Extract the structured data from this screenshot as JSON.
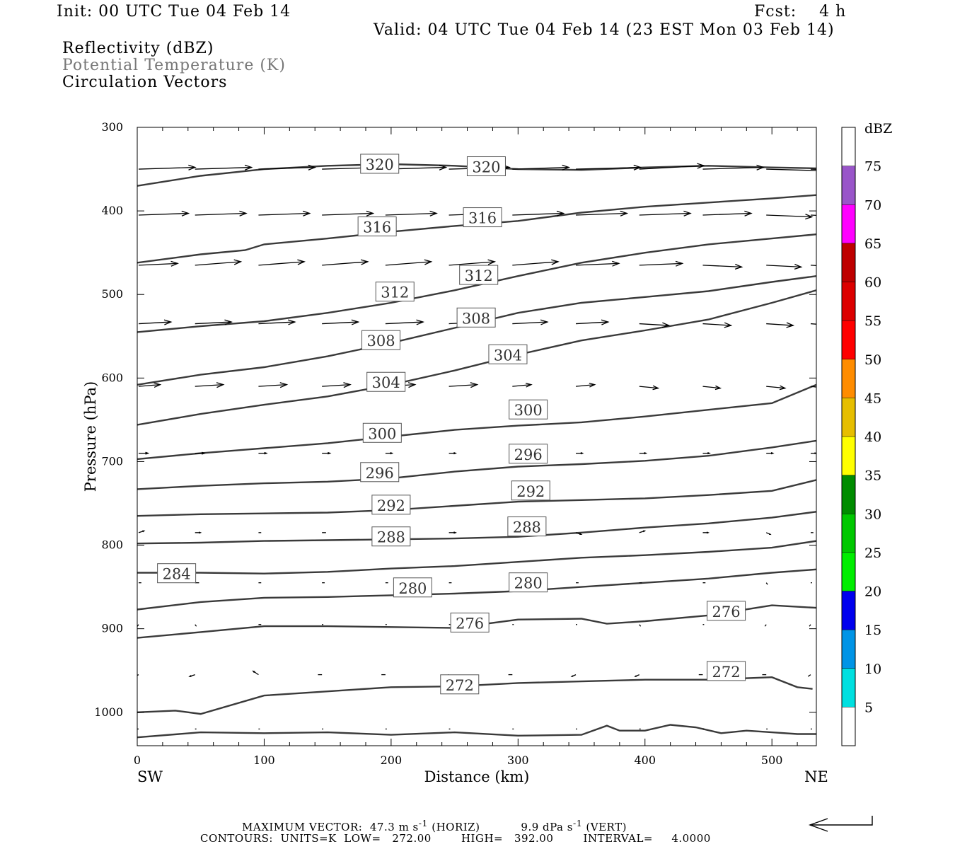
{
  "header": {
    "init": "Init: 00 UTC Tue 04 Feb 14",
    "fcst": "Fcst:    4 h",
    "valid": "Valid: 04 UTC Tue 04 Feb 14 (23 EST Mon 03 Feb 14)"
  },
  "legend": {
    "line1": "Reflectivity (dBZ)",
    "line2": "Potential Temperature (K)",
    "line3": "Circulation Vectors",
    "line2_color": "#777777"
  },
  "footer": {
    "max_vector_label": "MAXIMUM VECTOR:",
    "max_horiz_value": "47.3",
    "max_vert_value": "9.9",
    "contours_line": "CONTOURS:  UNITS=K  LOW=   272.00        HIGH=   392.00        INTERVAL=     4.0000"
  },
  "chart_data": {
    "type": "line",
    "title": "",
    "xlabel": "Distance (km)",
    "ylabel": "Pressure (hPa)",
    "xlim": [
      0,
      535
    ],
    "ylim": [
      1040,
      300
    ],
    "x_ticks": [
      0,
      100,
      200,
      300,
      400,
      500
    ],
    "y_ticks": [
      300,
      400,
      500,
      600,
      700,
      800,
      900,
      1000
    ],
    "x_left_label": "SW",
    "x_right_label": "NE",
    "line_color": "#3a3a3a",
    "isentropes": [
      {
        "theta": 320,
        "points": [
          [
            0,
            370
          ],
          [
            50,
            358
          ],
          [
            100,
            350
          ],
          [
            150,
            346
          ],
          [
            200,
            344
          ],
          [
            250,
            346
          ],
          [
            300,
            350
          ],
          [
            350,
            351
          ],
          [
            400,
            348
          ],
          [
            450,
            346
          ],
          [
            500,
            348
          ],
          [
            535,
            349
          ]
        ]
      },
      {
        "theta": 316,
        "points": [
          [
            0,
            462
          ],
          [
            50,
            452
          ],
          [
            85,
            447
          ],
          [
            100,
            440
          ],
          [
            150,
            433
          ],
          [
            200,
            425
          ],
          [
            250,
            418
          ],
          [
            300,
            412
          ],
          [
            350,
            402
          ],
          [
            400,
            395
          ],
          [
            450,
            390
          ],
          [
            500,
            385
          ],
          [
            535,
            381
          ]
        ]
      },
      {
        "theta": 312,
        "points": [
          [
            0,
            545
          ],
          [
            50,
            538
          ],
          [
            100,
            532
          ],
          [
            150,
            522
          ],
          [
            200,
            510
          ],
          [
            250,
            495
          ],
          [
            300,
            478
          ],
          [
            350,
            462
          ],
          [
            400,
            450
          ],
          [
            450,
            440
          ],
          [
            500,
            433
          ],
          [
            535,
            428
          ]
        ]
      },
      {
        "theta": 308,
        "points": [
          [
            0,
            608
          ],
          [
            50,
            596
          ],
          [
            100,
            587
          ],
          [
            150,
            574
          ],
          [
            200,
            558
          ],
          [
            250,
            540
          ],
          [
            300,
            522
          ],
          [
            350,
            510
          ],
          [
            400,
            503
          ],
          [
            450,
            496
          ],
          [
            500,
            485
          ],
          [
            535,
            478
          ]
        ]
      },
      {
        "theta": 304,
        "points": [
          [
            0,
            656
          ],
          [
            50,
            643
          ],
          [
            100,
            632
          ],
          [
            150,
            622
          ],
          [
            200,
            608
          ],
          [
            250,
            591
          ],
          [
            300,
            572
          ],
          [
            350,
            555
          ],
          [
            400,
            543
          ],
          [
            450,
            530
          ],
          [
            500,
            510
          ],
          [
            535,
            495
          ]
        ]
      },
      {
        "theta": 300,
        "points": [
          [
            0,
            697
          ],
          [
            50,
            690
          ],
          [
            100,
            684
          ],
          [
            150,
            678
          ],
          [
            200,
            670
          ],
          [
            250,
            662
          ],
          [
            300,
            657
          ],
          [
            350,
            653
          ],
          [
            400,
            646
          ],
          [
            450,
            638
          ],
          [
            500,
            630
          ],
          [
            535,
            608
          ]
        ]
      },
      {
        "theta": 296,
        "points": [
          [
            0,
            733
          ],
          [
            50,
            729
          ],
          [
            100,
            726
          ],
          [
            150,
            724
          ],
          [
            200,
            720
          ],
          [
            250,
            712
          ],
          [
            300,
            706
          ],
          [
            350,
            703
          ],
          [
            400,
            699
          ],
          [
            450,
            693
          ],
          [
            500,
            683
          ],
          [
            535,
            675
          ]
        ]
      },
      {
        "theta": 292,
        "points": [
          [
            0,
            765
          ],
          [
            50,
            763
          ],
          [
            100,
            762
          ],
          [
            150,
            761
          ],
          [
            200,
            758
          ],
          [
            250,
            753
          ],
          [
            300,
            748
          ],
          [
            350,
            746
          ],
          [
            400,
            744
          ],
          [
            450,
            740
          ],
          [
            500,
            735
          ],
          [
            535,
            722
          ]
        ]
      },
      {
        "theta": 288,
        "points": [
          [
            0,
            798
          ],
          [
            50,
            797
          ],
          [
            100,
            795
          ],
          [
            150,
            794
          ],
          [
            200,
            793
          ],
          [
            250,
            792
          ],
          [
            300,
            790
          ],
          [
            350,
            785
          ],
          [
            400,
            779
          ],
          [
            450,
            774
          ],
          [
            500,
            767
          ],
          [
            535,
            760
          ]
        ]
      },
      {
        "theta": 284,
        "points": [
          [
            0,
            833
          ],
          [
            50,
            833
          ],
          [
            100,
            834
          ],
          [
            150,
            832
          ],
          [
            200,
            828
          ],
          [
            250,
            825
          ],
          [
            300,
            820
          ],
          [
            350,
            815
          ],
          [
            400,
            812
          ],
          [
            450,
            808
          ],
          [
            500,
            803
          ],
          [
            535,
            795
          ]
        ]
      },
      {
        "theta": 280,
        "points": [
          [
            0,
            877
          ],
          [
            50,
            868
          ],
          [
            100,
            863
          ],
          [
            150,
            862
          ],
          [
            200,
            860
          ],
          [
            250,
            858
          ],
          [
            300,
            855
          ],
          [
            350,
            850
          ],
          [
            400,
            845
          ],
          [
            450,
            840
          ],
          [
            500,
            833
          ],
          [
            535,
            829
          ]
        ]
      },
      {
        "theta": 276,
        "points": [
          [
            0,
            911
          ],
          [
            50,
            904
          ],
          [
            100,
            897
          ],
          [
            150,
            897
          ],
          [
            200,
            898
          ],
          [
            250,
            899
          ],
          [
            300,
            889
          ],
          [
            350,
            888
          ],
          [
            370,
            894
          ],
          [
            400,
            891
          ],
          [
            450,
            884
          ],
          [
            500,
            872
          ],
          [
            535,
            875
          ]
        ]
      },
      {
        "theta": 272,
        "points": [
          [
            0,
            1000
          ],
          [
            30,
            998
          ],
          [
            50,
            1002
          ],
          [
            100,
            980
          ],
          [
            150,
            975
          ],
          [
            200,
            970
          ],
          [
            250,
            969
          ],
          [
            300,
            965
          ],
          [
            350,
            963
          ],
          [
            400,
            961
          ],
          [
            450,
            961
          ],
          [
            500,
            958
          ],
          [
            520,
            970
          ],
          [
            532,
            972
          ]
        ]
      },
      {
        "theta": 268,
        "points": [
          [
            0,
            1030
          ],
          [
            50,
            1024
          ],
          [
            100,
            1025
          ],
          [
            150,
            1024
          ],
          [
            200,
            1027
          ],
          [
            250,
            1024
          ],
          [
            300,
            1028
          ],
          [
            350,
            1027
          ],
          [
            370,
            1016
          ],
          [
            380,
            1022
          ],
          [
            400,
            1022
          ],
          [
            420,
            1015
          ],
          [
            440,
            1018
          ],
          [
            460,
            1025
          ],
          [
            480,
            1022
          ],
          [
            500,
            1024
          ],
          [
            520,
            1026
          ],
          [
            535,
            1026
          ]
        ]
      }
    ],
    "contour_labels": [
      {
        "text": "320",
        "x": 191,
        "p": 344
      },
      {
        "text": "320",
        "x": 275,
        "p": 347
      },
      {
        "text": "316",
        "x": 189,
        "p": 419
      },
      {
        "text": "316",
        "x": 272,
        "p": 408
      },
      {
        "text": "312",
        "x": 203,
        "p": 497
      },
      {
        "text": "312",
        "x": 269,
        "p": 477
      },
      {
        "text": "308",
        "x": 192,
        "p": 555
      },
      {
        "text": "308",
        "x": 267,
        "p": 528
      },
      {
        "text": "304",
        "x": 196,
        "p": 605
      },
      {
        "text": "304",
        "x": 292,
        "p": 572
      },
      {
        "text": "300",
        "x": 193,
        "p": 666
      },
      {
        "text": "300",
        "x": 308,
        "p": 638
      },
      {
        "text": "296",
        "x": 191,
        "p": 713
      },
      {
        "text": "296",
        "x": 308,
        "p": 691
      },
      {
        "text": "292",
        "x": 200,
        "p": 752
      },
      {
        "text": "292",
        "x": 310,
        "p": 735
      },
      {
        "text": "288",
        "x": 200,
        "p": 790
      },
      {
        "text": "288",
        "x": 307,
        "p": 778
      },
      {
        "text": "284",
        "x": 31,
        "p": 834
      },
      {
        "text": "280",
        "x": 217,
        "p": 851
      },
      {
        "text": "280",
        "x": 308,
        "p": 845
      },
      {
        "text": "276",
        "x": 262,
        "p": 893
      },
      {
        "text": "276",
        "x": 464,
        "p": 879
      },
      {
        "text": "272",
        "x": 254,
        "p": 967
      },
      {
        "text": "272",
        "x": 464,
        "p": 951
      }
    ],
    "vectors_m_s": {
      "rows_p": [
        350,
        405,
        465,
        535,
        610,
        690,
        785,
        845,
        895,
        955,
        1020
      ],
      "cols_x": [
        0,
        50,
        100,
        150,
        200,
        250,
        300,
        350,
        400,
        450,
        500,
        535
      ],
      "u": [
        [
          42,
          42,
          42,
          45,
          45,
          45,
          42,
          48,
          48,
          45,
          45,
          38
        ],
        [
          37,
          38,
          38,
          38,
          38,
          38,
          38,
          38,
          38,
          36,
          34,
          31
        ],
        [
          29,
          34,
          34,
          34,
          34,
          34,
          34,
          32,
          32,
          29,
          26,
          22
        ],
        [
          24,
          27,
          27,
          27,
          28,
          28,
          26,
          24,
          22,
          21,
          20,
          16
        ],
        [
          16,
          21,
          21,
          21,
          22,
          21,
          14,
          14,
          14,
          13,
          14,
          11
        ],
        [
          7,
          7,
          6,
          6,
          5,
          5,
          6,
          5,
          5,
          5,
          5,
          4
        ],
        [
          4,
          4,
          2,
          3,
          3,
          5,
          4,
          4,
          4,
          4,
          3,
          2
        ],
        [
          2,
          3,
          2,
          2,
          2,
          2,
          2,
          2,
          2,
          2,
          1,
          1
        ],
        [
          -1,
          1,
          2,
          1,
          1,
          1,
          1,
          1,
          1,
          1,
          -1,
          -1
        ],
        [
          -3,
          -4,
          -4,
          -3,
          -3,
          -3,
          -3,
          -3,
          -3,
          -3,
          -3,
          -2
        ],
        [
          -1,
          1,
          1,
          1,
          1,
          1,
          1,
          1,
          1,
          1,
          1,
          1
        ]
      ],
      "w_dpa": [
        [
          -1,
          -1,
          -1,
          -1,
          -1,
          -1,
          -1,
          -1,
          -2,
          -1,
          1,
          1
        ],
        [
          -1,
          -1,
          -1,
          -1,
          -1,
          -1,
          -1,
          -1,
          -1,
          -1,
          1,
          1
        ],
        [
          -1,
          -2,
          -2,
          -2,
          -2,
          -2,
          -2,
          -1,
          -1,
          1,
          1,
          1
        ],
        [
          -1,
          -1,
          -1,
          -1,
          -1,
          -1,
          -1,
          -1,
          1,
          1,
          1,
          1
        ],
        [
          -1,
          -1,
          -1,
          -1,
          -1,
          -1,
          -1,
          -1,
          1,
          1,
          1,
          1
        ],
        [
          0,
          0,
          0,
          0,
          0,
          0,
          0,
          0,
          0,
          0,
          0,
          0
        ],
        [
          -1,
          0,
          0,
          0,
          -1,
          0,
          0,
          1,
          -1,
          0,
          1,
          0
        ],
        [
          0,
          0,
          0,
          0,
          0,
          0,
          0,
          0,
          0,
          0,
          1,
          0
        ],
        [
          1,
          1,
          0,
          0,
          0,
          0,
          0,
          0,
          1,
          0,
          1,
          1
        ],
        [
          1,
          1,
          -2,
          0,
          0,
          1,
          0,
          1,
          1,
          0,
          0,
          1
        ],
        [
          0,
          0,
          0,
          0,
          0,
          0,
          0,
          0,
          0,
          0,
          0,
          0
        ]
      ]
    },
    "colorbar": {
      "title": "dBZ",
      "levels": [
        5,
        10,
        15,
        20,
        25,
        30,
        35,
        40,
        45,
        50,
        55,
        60,
        65,
        70,
        75
      ],
      "colors": [
        "#ffffff",
        "#00e0e0",
        "#0094e6",
        "#0000ee",
        "#00ee00",
        "#00c800",
        "#008c00",
        "#ffff00",
        "#e6be00",
        "#ff8c00",
        "#ff0000",
        "#dc0000",
        "#be0000",
        "#ff00ff",
        "#9955c9",
        "#ffffff"
      ]
    }
  }
}
